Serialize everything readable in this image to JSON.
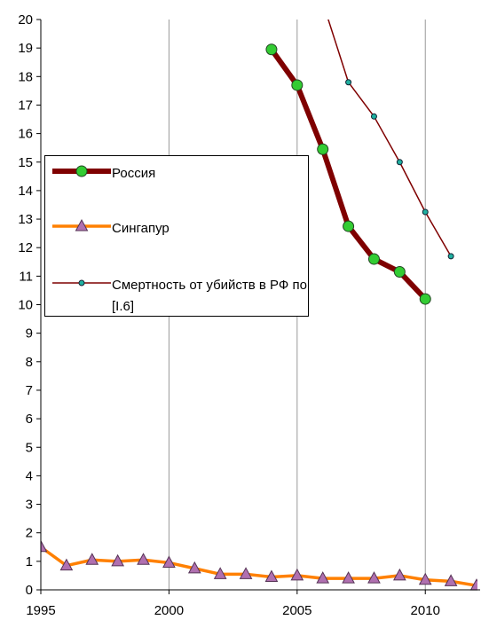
{
  "chart_data": {
    "type": "line",
    "x": [
      1995,
      1996,
      1997,
      1998,
      1999,
      2000,
      2001,
      2002,
      2003,
      2004,
      2005,
      2006,
      2007,
      2008,
      2009,
      2010,
      2011,
      2012
    ],
    "series": [
      {
        "name": "Россия",
        "color": "#7f0000",
        "marker": "circle",
        "marker_color": "#33cc33",
        "values": [
          null,
          null,
          null,
          null,
          null,
          null,
          null,
          null,
          null,
          18.95,
          17.7,
          15.45,
          12.75,
          11.6,
          11.15,
          10.2,
          null,
          null
        ]
      },
      {
        "name": "Сингапур",
        "color": "#ff8000",
        "marker": "triangle",
        "marker_color": "#b070b0",
        "values": [
          1.5,
          0.85,
          1.05,
          1.0,
          1.05,
          0.95,
          0.75,
          0.55,
          0.55,
          0.45,
          0.5,
          0.4,
          0.4,
          0.4,
          0.5,
          0.35,
          0.3,
          0.15
        ]
      },
      {
        "name": "Смертность от убийств в РФ по [I.6]",
        "color": "#7f0000",
        "marker": "dot",
        "marker_color": "#20b0a0",
        "values": [
          null,
          null,
          null,
          null,
          null,
          null,
          null,
          null,
          null,
          null,
          null,
          20.6,
          17.8,
          16.6,
          15.0,
          13.25,
          11.7,
          null
        ]
      }
    ],
    "xlim": [
      1995,
      2012
    ],
    "xticks": [
      1995,
      2000,
      2005,
      2010
    ],
    "ylim": [
      0,
      20
    ],
    "yticks": [
      0,
      1,
      2,
      3,
      4,
      5,
      6,
      7,
      8,
      9,
      10,
      11,
      12,
      13,
      14,
      15,
      16,
      17,
      18,
      19,
      20
    ],
    "grid": "x"
  }
}
